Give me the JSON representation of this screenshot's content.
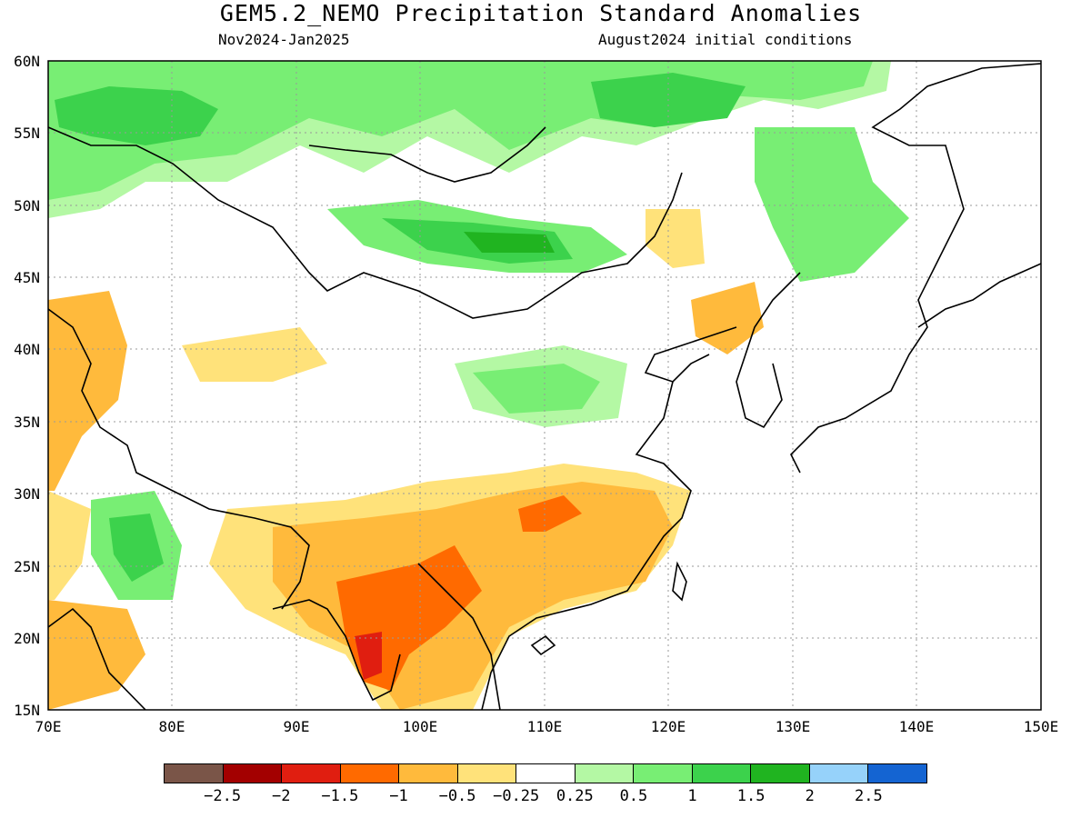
{
  "title": "GEM5.2_NEMO Precipitation Standard Anomalies",
  "subtitle_left": "Nov2024-Jan2025",
  "subtitle_right": "August2024 initial conditions",
  "lat_labels": [
    "60N",
    "55N",
    "50N",
    "45N",
    "40N",
    "35N",
    "30N",
    "25N",
    "20N",
    "15N"
  ],
  "lon_labels": [
    "70E",
    "80E",
    "90E",
    "100E",
    "110E",
    "120E",
    "130E",
    "140E",
    "150E"
  ],
  "colorbar": {
    "colors": [
      "#7a5548",
      "#a30000",
      "#e01e10",
      "#ff6a00",
      "#ffba3c",
      "#ffe27a",
      "#ffffff",
      "#b4f8a4",
      "#78ee74",
      "#3cd24c",
      "#20b420",
      "#96d2fa",
      "#1464d2"
    ],
    "labels": [
      "-2.5",
      "-2",
      "-1.5",
      "-1",
      "-0.5",
      "-0.25",
      "0.25",
      "0.5",
      "1",
      "1.5",
      "2",
      "2.5"
    ]
  }
}
